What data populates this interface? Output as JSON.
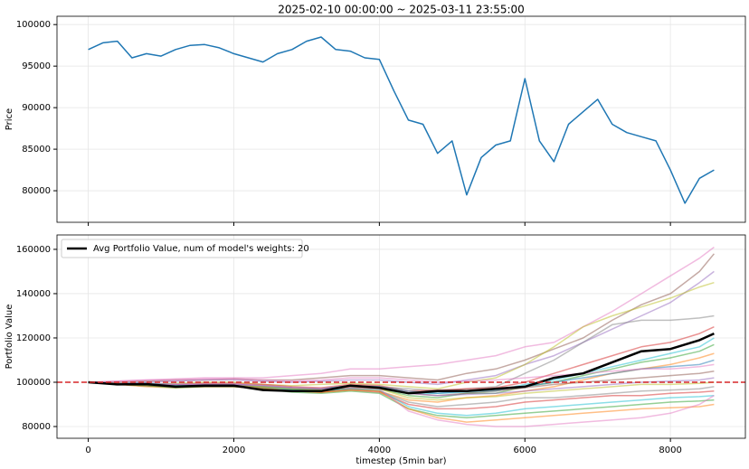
{
  "chart_data": [
    {
      "type": "line",
      "title": "2025-02-10 00:00:00 ~ 2025-03-11 23:55:00",
      "ylabel": "Price",
      "xlim": [
        -430,
        9030
      ],
      "ylim": [
        76200,
        101000
      ],
      "xticks": [
        0,
        2000,
        4000,
        6000,
        8000
      ],
      "xtick_labels": false,
      "yticks": [
        80000,
        85000,
        90000,
        95000,
        100000
      ],
      "grid": true,
      "x": [
        0,
        200,
        400,
        600,
        800,
        1000,
        1200,
        1400,
        1600,
        1800,
        2000,
        2200,
        2400,
        2600,
        2800,
        3000,
        3200,
        3400,
        3600,
        3800,
        4000,
        4200,
        4400,
        4600,
        4800,
        5000,
        5200,
        5400,
        5600,
        5800,
        6000,
        6200,
        6400,
        6600,
        6800,
        7000,
        7200,
        7400,
        7600,
        7800,
        8000,
        8200,
        8400,
        8600
      ],
      "series": [
        {
          "color": "#1f77b4",
          "values": [
            97000,
            97800,
            98000,
            96000,
            96500,
            96200,
            97000,
            97500,
            97600,
            97200,
            96500,
            96000,
            95500,
            96500,
            97000,
            98000,
            98500,
            97000,
            96800,
            96000,
            95800,
            92000,
            88500,
            88000,
            84500,
            86000,
            79500,
            84000,
            85500,
            86000,
            93500,
            86000,
            83500,
            88000,
            89500,
            91000,
            88000,
            87000,
            86500,
            86000,
            82500,
            78500,
            81500,
            82500
          ]
        }
      ]
    },
    {
      "type": "line",
      "ylabel": "Portfolio Value",
      "xlabel": "timestep (5min bar)",
      "xlim": [
        -430,
        9030
      ],
      "ylim": [
        74700,
        166500
      ],
      "xticks": [
        0,
        2000,
        4000,
        6000,
        8000
      ],
      "yticks": [
        80000,
        100000,
        120000,
        140000,
        160000
      ],
      "grid": true,
      "legend": "upper left",
      "hline": {
        "value": 100000,
        "color": "#d62728",
        "style": "dashed"
      },
      "x": [
        0,
        400,
        800,
        1200,
        1600,
        2000,
        2400,
        2800,
        3200,
        3600,
        4000,
        4400,
        4800,
        5200,
        5600,
        6000,
        6400,
        6800,
        7200,
        7600,
        8000,
        8400,
        8600
      ],
      "series": [
        {
          "color": "#e377c2",
          "values": [
            100000,
            100500,
            101000,
            101500,
            102000,
            102000,
            102000,
            103000,
            104000,
            106000,
            106000,
            107000,
            108000,
            110000,
            112000,
            116000,
            118000,
            125000,
            132000,
            140000,
            148000,
            156000,
            161000
          ]
        },
        {
          "color": "#8c564b",
          "values": [
            100000,
            100000,
            100500,
            101000,
            101000,
            101500,
            101000,
            101000,
            102000,
            103000,
            103000,
            102000,
            101000,
            104000,
            106000,
            110000,
            115000,
            120000,
            128000,
            135000,
            140000,
            150000,
            158000
          ]
        },
        {
          "color": "#9467bd",
          "values": [
            100000,
            99500,
            100000,
            100500,
            101000,
            101000,
            100500,
            100000,
            100500,
            101000,
            101000,
            100000,
            99000,
            101000,
            103000,
            108000,
            112000,
            118000,
            124000,
            130000,
            136000,
            145000,
            150000
          ]
        },
        {
          "color": "#bcbd22",
          "values": [
            100000,
            99500,
            99000,
            99500,
            100000,
            100000,
            99000,
            98500,
            99000,
            99500,
            99000,
            98000,
            97000,
            100000,
            102000,
            108000,
            116000,
            125000,
            130000,
            134000,
            138000,
            143000,
            145000
          ]
        },
        {
          "color": "#7f7f7f",
          "values": [
            100000,
            99000,
            99000,
            98500,
            99000,
            99000,
            98000,
            97500,
            97000,
            98500,
            98000,
            97000,
            96000,
            97000,
            98000,
            104000,
            110000,
            118000,
            126000,
            128000,
            128000,
            129000,
            130000
          ]
        },
        {
          "color": "#d62728",
          "values": [
            100000,
            99500,
            99000,
            99000,
            99500,
            99500,
            99000,
            98000,
            97500,
            99000,
            98500,
            96000,
            96500,
            97000,
            97500,
            100000,
            104000,
            108000,
            112000,
            116000,
            118000,
            122000,
            125000
          ]
        },
        {
          "color": "#17becf",
          "values": [
            100000,
            99000,
            98500,
            98000,
            98500,
            98500,
            98000,
            97000,
            96500,
            98000,
            97500,
            95000,
            95000,
            95500,
            96000,
            99000,
            101000,
            104000,
            107000,
            110000,
            113000,
            116000,
            120000
          ]
        },
        {
          "color": "#2ca02c",
          "values": [
            100000,
            99500,
            99000,
            98500,
            98500,
            98500,
            98000,
            97000,
            97000,
            98000,
            97000,
            94000,
            93000,
            95000,
            95000,
            98000,
            100000,
            103000,
            106000,
            109000,
            111000,
            114000,
            117000
          ]
        },
        {
          "color": "#ff7f0e",
          "values": [
            100000,
            99000,
            98000,
            97500,
            98000,
            98000,
            97000,
            96000,
            95500,
            97000,
            96000,
            92000,
            91000,
            93000,
            94000,
            96000,
            98000,
            101000,
            104000,
            106000,
            108000,
            111000,
            113000
          ]
        },
        {
          "color": "#1f77b4",
          "values": [
            100000,
            99500,
            99500,
            99000,
            99000,
            99000,
            98500,
            97500,
            97000,
            98500,
            98000,
            96000,
            95000,
            96000,
            96500,
            98000,
            100000,
            102000,
            104000,
            106000,
            107000,
            108000,
            110000
          ]
        },
        {
          "color": "#e377c2",
          "values": [
            100000,
            100500,
            101000,
            101000,
            101500,
            101500,
            101000,
            100500,
            101000,
            102000,
            102000,
            101000,
            100000,
            100500,
            101000,
            102000,
            103000,
            104000,
            105000,
            106000,
            106000,
            107000,
            108000
          ]
        },
        {
          "color": "#8c564b",
          "values": [
            100000,
            99000,
            98500,
            98000,
            98000,
            98000,
            97000,
            96500,
            96000,
            97500,
            97000,
            95000,
            94000,
            95000,
            96000,
            97500,
            99000,
            100000,
            101000,
            102000,
            103000,
            104000,
            105000
          ]
        },
        {
          "color": "#9467bd",
          "values": [
            100000,
            99500,
            99000,
            99000,
            99000,
            99000,
            98500,
            97500,
            97000,
            98000,
            97500,
            95000,
            94000,
            94500,
            95000,
            96000,
            97000,
            98000,
            99000,
            100000,
            100500,
            101000,
            102000
          ]
        },
        {
          "color": "#bcbd22",
          "values": [
            100000,
            99000,
            98500,
            98000,
            98500,
            98500,
            98000,
            97000,
            96500,
            97500,
            97000,
            93000,
            92000,
            93000,
            93500,
            95000,
            96000,
            97000,
            98000,
            99000,
            99000,
            99500,
            100000
          ]
        },
        {
          "color": "#7f7f7f",
          "values": [
            100000,
            99500,
            99000,
            98500,
            98500,
            98500,
            97500,
            96500,
            96000,
            97000,
            96000,
            91000,
            89000,
            90000,
            91000,
            93000,
            93000,
            94000,
            95000,
            96000,
            96500,
            97000,
            98000
          ]
        },
        {
          "color": "#d62728",
          "values": [
            100000,
            99000,
            98500,
            98000,
            98000,
            98000,
            97000,
            96000,
            95500,
            96500,
            95500,
            90000,
            88000,
            88000,
            89000,
            91000,
            92000,
            93000,
            94000,
            94000,
            95000,
            95500,
            96000
          ]
        },
        {
          "color": "#17becf",
          "values": [
            100000,
            99500,
            99000,
            98500,
            98500,
            98500,
            97500,
            96500,
            96000,
            97000,
            96500,
            89000,
            86000,
            85000,
            86000,
            88000,
            89000,
            90000,
            91000,
            92000,
            93000,
            93500,
            94000
          ]
        },
        {
          "color": "#2ca02c",
          "values": [
            100000,
            99000,
            98500,
            97500,
            98000,
            98000,
            97000,
            95500,
            95000,
            96000,
            95000,
            88000,
            85000,
            84000,
            85000,
            86000,
            87000,
            88000,
            89000,
            90000,
            91000,
            91500,
            92000
          ]
        },
        {
          "color": "#ff7f0e",
          "values": [
            100000,
            99500,
            99000,
            98000,
            98500,
            98500,
            97500,
            96000,
            95500,
            96500,
            96000,
            88000,
            84000,
            82000,
            83000,
            84000,
            85000,
            86000,
            87000,
            88000,
            88500,
            89000,
            90000
          ]
        },
        {
          "color": "#e377c2",
          "values": [
            100000,
            99500,
            99000,
            99000,
            99000,
            99000,
            98500,
            97500,
            97000,
            97500,
            97000,
            87000,
            83000,
            81000,
            80000,
            80000,
            81000,
            82000,
            83000,
            84000,
            86000,
            90000,
            94000
          ]
        },
        {
          "name": "Avg Portfolio Value, num of model's weights: 20",
          "color": "#000000",
          "values": [
            100000,
            99000,
            99200,
            98000,
            98500,
            98500,
            96500,
            96000,
            96000,
            98500,
            97500,
            95000,
            96000,
            96000,
            97000,
            98000,
            102000,
            104000,
            109000,
            114000,
            115000,
            119000,
            122000
          ]
        }
      ]
    }
  ]
}
